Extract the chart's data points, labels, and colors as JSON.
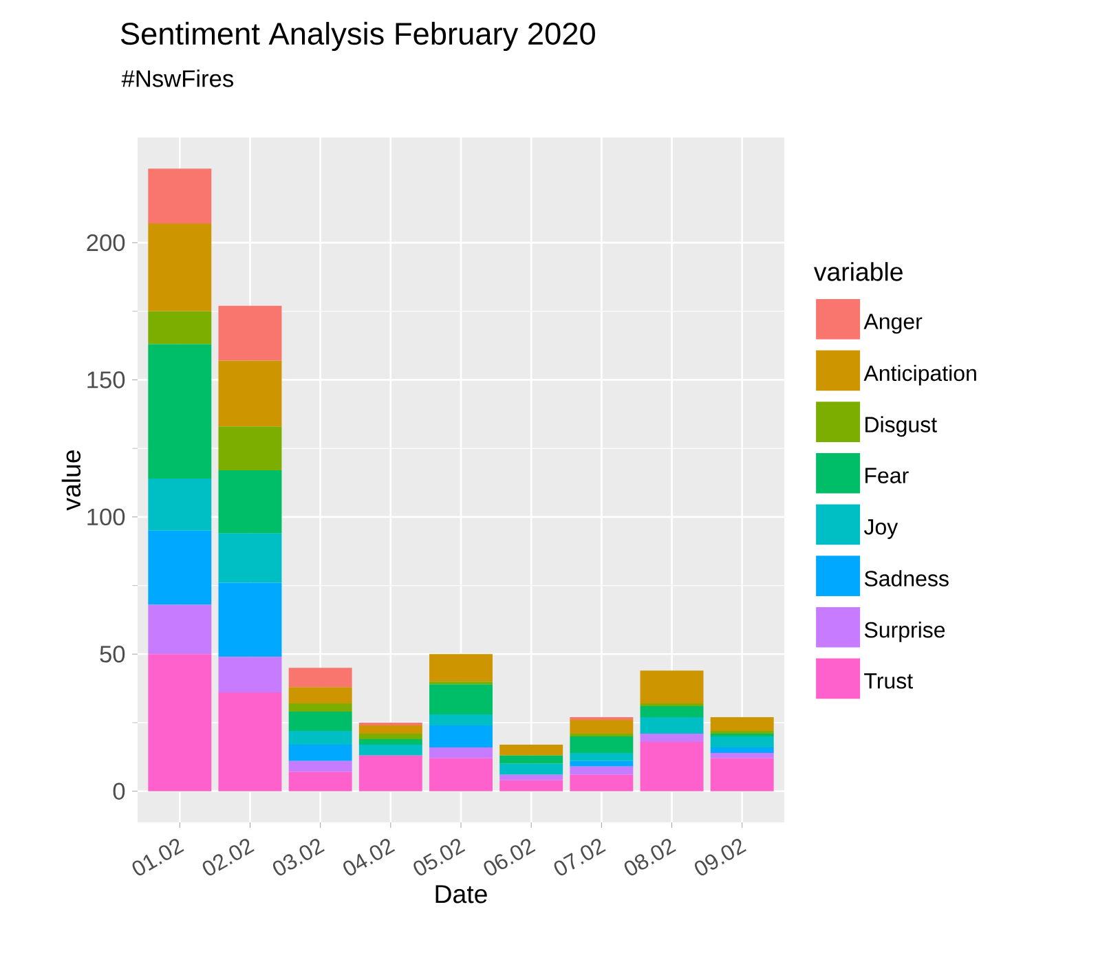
{
  "chart_data": {
    "type": "bar",
    "title": "Sentiment Analysis February 2020",
    "subtitle": "#NswFires",
    "xlabel": "Date",
    "ylabel": "value",
    "legend_title": "variable",
    "categories": [
      "01.02",
      "02.02",
      "03.02",
      "04.02",
      "05.02",
      "06.02",
      "07.02",
      "08.02",
      "09.02"
    ],
    "stacked": true,
    "grid": true,
    "legend": "right",
    "ylim": [
      -11.35,
      238.35
    ],
    "yticks": [
      0,
      50,
      100,
      150,
      200
    ],
    "series": [
      {
        "name": "Trust",
        "color": "#FF61CC",
        "values": [
          50,
          36,
          7,
          13,
          12,
          4,
          6,
          18,
          12
        ]
      },
      {
        "name": "Surprise",
        "color": "#C77CFF",
        "values": [
          18,
          13,
          4,
          0,
          4,
          2,
          3,
          3,
          2
        ]
      },
      {
        "name": "Sadness",
        "color": "#00A9FF",
        "values": [
          27,
          27,
          6,
          0,
          8,
          0,
          2,
          0,
          2
        ]
      },
      {
        "name": "Joy",
        "color": "#00BFC4",
        "values": [
          19,
          18,
          5,
          4,
          4,
          4,
          3,
          6,
          4
        ]
      },
      {
        "name": "Fear",
        "color": "#00BE67",
        "values": [
          49,
          23,
          7,
          2,
          11,
          3,
          6,
          4,
          1
        ]
      },
      {
        "name": "Disgust",
        "color": "#7CAE00",
        "values": [
          12,
          16,
          3,
          2,
          1,
          0,
          1,
          1,
          1
        ]
      },
      {
        "name": "Anticipation",
        "color": "#CD9600",
        "values": [
          32,
          24,
          6,
          3,
          10,
          4,
          5,
          12,
          5
        ]
      },
      {
        "name": "Anger",
        "color": "#F8766D",
        "values": [
          20,
          20,
          7,
          1,
          0,
          0,
          1,
          0,
          0
        ]
      }
    ]
  }
}
